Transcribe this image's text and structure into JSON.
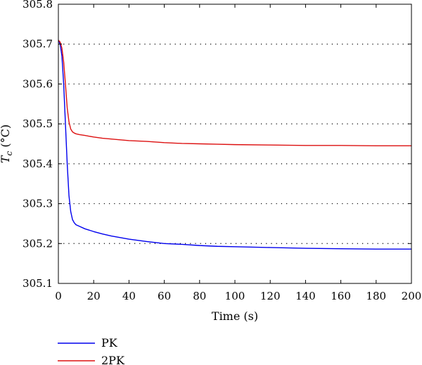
{
  "chart_data": {
    "type": "line",
    "xlabel": "Time (s)",
    "ylabel_main": "T",
    "ylabel_sub": "c",
    "ylabel_unit": " (°C)",
    "xlim": [
      0,
      200
    ],
    "ylim": [
      305.1,
      305.8
    ],
    "xticks": [
      0,
      20,
      40,
      60,
      80,
      100,
      120,
      140,
      160,
      180,
      200
    ],
    "yticks": [
      305.1,
      305.2,
      305.3,
      305.4,
      305.5,
      305.6,
      305.7,
      305.8
    ],
    "ytick_labels": [
      "305.1",
      "305.2",
      "305.3",
      "305.4",
      "305.5",
      "305.6",
      "305.7",
      "305.8"
    ],
    "grid": "horizontal dotted",
    "legend_position": "bottom-left, below plot",
    "series": [
      {
        "name": "PK",
        "color": "#0000ee",
        "x": [
          0,
          1,
          2,
          3,
          4,
          5,
          6,
          7,
          8,
          9,
          10,
          12,
          15,
          20,
          25,
          30,
          40,
          50,
          60,
          70,
          80,
          90,
          100,
          120,
          140,
          160,
          180,
          200
        ],
        "y": [
          305.71,
          305.7,
          305.67,
          305.6,
          305.5,
          305.4,
          305.32,
          305.28,
          305.26,
          305.252,
          305.247,
          305.243,
          305.237,
          305.23,
          305.224,
          305.219,
          305.211,
          305.205,
          305.2,
          305.198,
          305.195,
          305.193,
          305.192,
          305.19,
          305.188,
          305.187,
          305.186,
          305.186
        ]
      },
      {
        "name": "2PK",
        "color": "#dd1111",
        "x": [
          0,
          1,
          2,
          3,
          4,
          5,
          6,
          7,
          8,
          9,
          10,
          12,
          15,
          20,
          25,
          30,
          40,
          50,
          60,
          70,
          80,
          90,
          100,
          120,
          140,
          160,
          180,
          200
        ],
        "y": [
          305.71,
          305.705,
          305.69,
          305.655,
          305.6,
          305.54,
          305.505,
          305.487,
          305.48,
          305.477,
          305.475,
          305.473,
          305.471,
          305.467,
          305.464,
          305.462,
          305.458,
          305.456,
          305.453,
          305.451,
          305.45,
          305.449,
          305.448,
          305.447,
          305.446,
          305.446,
          305.445,
          305.445
        ]
      }
    ]
  }
}
